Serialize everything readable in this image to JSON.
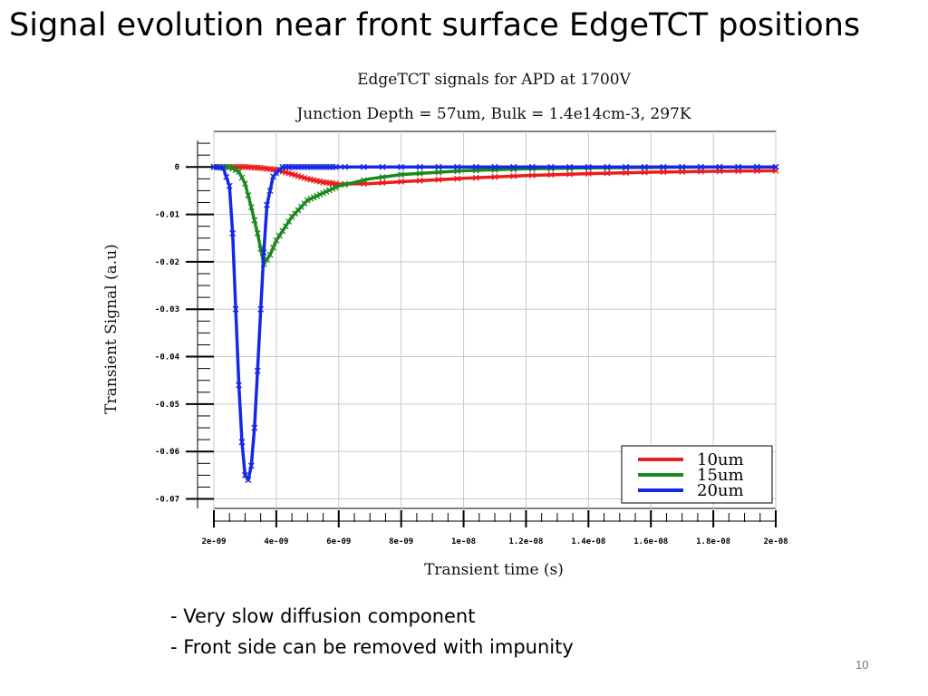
{
  "slide": {
    "title": "Signal evolution near front surface EdgeTCT positions",
    "bullets": [
      "- Very slow diffusion component",
      "- Front side can be removed with impunity"
    ],
    "page_number": "10"
  },
  "chart_data": {
    "type": "line",
    "title": "EdgeTCT signals for APD at 1700V",
    "subtitle": "Junction Depth = 57um, Bulk = 1.4e14cm-3, 297K",
    "xlabel": "Transient time (s)",
    "ylabel": "Transient Signal (a.u)",
    "xlim": [
      2e-09,
      2e-08
    ],
    "ylim": [
      -0.072,
      0.0075
    ],
    "x_ticks": [
      2e-09,
      4e-09,
      6e-09,
      8e-09,
      1e-08,
      1.2e-08,
      1.4e-08,
      1.6e-08,
      1.8e-08,
      2e-08
    ],
    "x_tick_labels": [
      "2e-09",
      "4e-09",
      "6e-09",
      "8e-09",
      "1e-08",
      "1.2e-08",
      "1.4e-08",
      "1.6e-08",
      "1.8e-08",
      "2e-08"
    ],
    "y_ticks": [
      0,
      -0.01,
      -0.02,
      -0.03,
      -0.04,
      -0.05,
      -0.06,
      -0.07
    ],
    "y_tick_labels": [
      "0",
      "-0.01",
      "-0.02",
      "-0.03",
      "-0.04",
      "-0.05",
      "-0.06",
      "-0.07"
    ],
    "grid": true,
    "legend_position": "bottom-right",
    "series": [
      {
        "name": "10um",
        "color": "#ee1c1c",
        "marker": "x",
        "x": [
          2e-09,
          3e-09,
          3.5e-09,
          4e-09,
          4.5e-09,
          5e-09,
          5.5e-09,
          6e-09,
          7e-09,
          8e-09,
          1e-08,
          1.2e-08,
          1.4e-08,
          1.6e-08,
          1.8e-08,
          2e-08
        ],
        "y": [
          0,
          0,
          -0.0002,
          -0.0006,
          -0.0015,
          -0.0025,
          -0.0032,
          -0.0036,
          -0.0035,
          -0.0031,
          -0.0024,
          -0.0018,
          -0.0014,
          -0.0011,
          -0.0009,
          -0.0008
        ]
      },
      {
        "name": "15um",
        "color": "#1a8a1a",
        "marker": "x",
        "x": [
          2e-09,
          2.5e-09,
          2.8e-09,
          3e-09,
          3.2e-09,
          3.4e-09,
          3.6e-09,
          3.8e-09,
          4e-09,
          4.5e-09,
          5e-09,
          6e-09,
          7e-09,
          8e-09,
          1e-08,
          1.2e-08,
          1.4e-08,
          1.6e-08,
          1.8e-08,
          2e-08
        ],
        "y": [
          0,
          0,
          -0.001,
          -0.0035,
          -0.0085,
          -0.014,
          -0.0205,
          -0.0185,
          -0.0155,
          -0.0105,
          -0.007,
          -0.004,
          -0.0025,
          -0.0016,
          -0.0008,
          -0.0004,
          -0.0002,
          -0.0001,
          0,
          0
        ]
      },
      {
        "name": "20um",
        "color": "#1428e6",
        "marker": "x",
        "x": [
          2e-09,
          2.3e-09,
          2.5e-09,
          2.6e-09,
          2.7e-09,
          2.8e-09,
          2.9e-09,
          3e-09,
          3.1e-09,
          3.2e-09,
          3.3e-09,
          3.4e-09,
          3.5e-09,
          3.6e-09,
          3.7e-09,
          3.9e-09,
          4.2e-09,
          5e-09,
          1e-08,
          2e-08
        ],
        "y": [
          0,
          -0.0002,
          -0.004,
          -0.014,
          -0.03,
          -0.046,
          -0.058,
          -0.065,
          -0.066,
          -0.063,
          -0.055,
          -0.043,
          -0.03,
          -0.018,
          -0.008,
          -0.002,
          0,
          0,
          0,
          0
        ]
      }
    ]
  }
}
